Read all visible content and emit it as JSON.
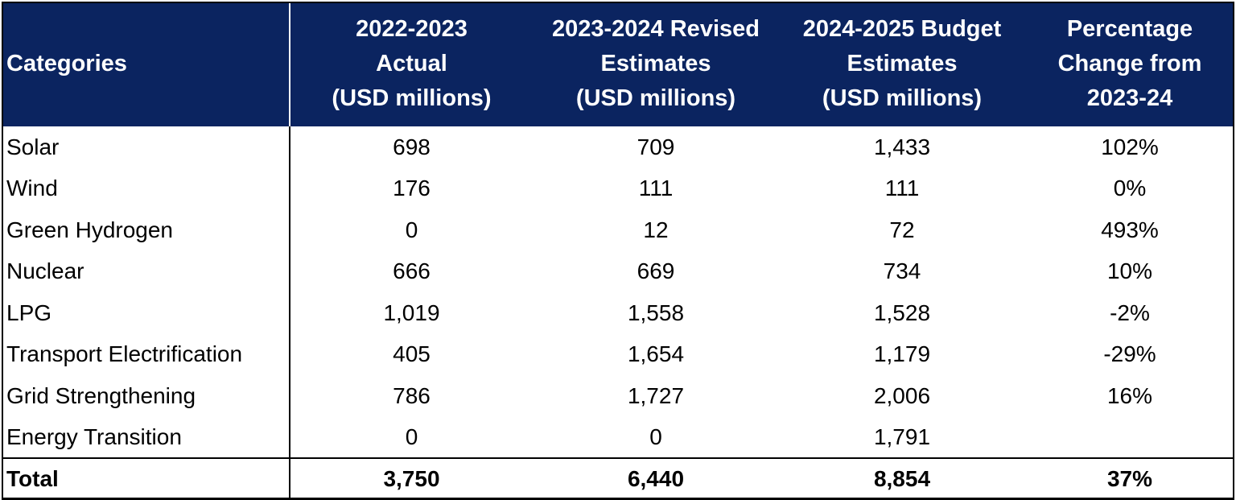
{
  "chart_data": {
    "type": "table",
    "columns": [
      "Categories",
      "2022-2023\nActual\n(USD millions)",
      "2023-2024 Revised\nEstimates\n(USD millions)",
      "2024-2025 Budget\nEstimates\n(USD millions)",
      "Percentage\nChange from\n2023-24"
    ],
    "rows": [
      [
        "Solar",
        "698",
        "709",
        "1,433",
        "102%"
      ],
      [
        "Wind",
        "176",
        "111",
        "111",
        "0%"
      ],
      [
        "Green Hydrogen",
        "0",
        "12",
        "72",
        "493%"
      ],
      [
        "Nuclear",
        "666",
        "669",
        "734",
        "10%"
      ],
      [
        "LPG",
        "1,019",
        "1,558",
        "1,528",
        "-2%"
      ],
      [
        "Transport Electrification",
        "405",
        "1,654",
        "1,179",
        "-29%"
      ],
      [
        "Grid Strengthening",
        "786",
        "1,727",
        "2,006",
        "16%"
      ],
      [
        "Energy Transition",
        "0",
        "0",
        "1,791",
        ""
      ]
    ],
    "total": [
      "Total",
      "3,750",
      "6,440",
      "8,854",
      "37%"
    ],
    "colors": {
      "header_background": "#0b2460",
      "header_text": "#ffffff",
      "body_text": "#000000"
    }
  }
}
